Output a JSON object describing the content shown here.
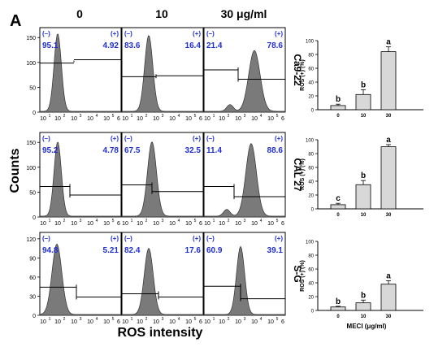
{
  "figure_label": "A",
  "column_headers": [
    "0",
    "10",
    "30 μg/ml"
  ],
  "y_label": "Counts",
  "x_label": "ROS intensity",
  "colors": {
    "fill": "#7a7a7a",
    "quadrant": "#1f2fd6",
    "bar": "#d8d8d8",
    "axis": "#000000"
  },
  "histogram_x_ticks": [
    "10",
    "1",
    "10",
    "2",
    "10",
    "3",
    "10",
    "4",
    "10",
    "5",
    "6"
  ],
  "rows": [
    {
      "name": "Ca9-22",
      "y_ticks": [
        "0",
        "50",
        "100",
        "150"
      ],
      "panels": [
        {
          "neg": "95.1",
          "pos": "4.92"
        },
        {
          "neg": "83.6",
          "pos": "16.4"
        },
        {
          "neg": "21.4",
          "pos": "78.6"
        }
      ]
    },
    {
      "name": "CAL 27",
      "y_ticks": [
        "0",
        "50",
        "100",
        "150"
      ],
      "panels": [
        {
          "neg": "95.2",
          "pos": "4.78"
        },
        {
          "neg": "67.5",
          "pos": "32.5"
        },
        {
          "neg": "11.4",
          "pos": "88.6"
        }
      ]
    },
    {
      "name": "S-G",
      "y_ticks": [
        "0",
        "30",
        "60",
        "90",
        "120"
      ],
      "panels": [
        {
          "neg": "94.8",
          "pos": "5.21"
        },
        {
          "neg": "82.4",
          "pos": "17.6"
        },
        {
          "neg": "60.9",
          "pos": "39.1"
        }
      ]
    }
  ],
  "quadrant_labels": {
    "neg": "(–)",
    "pos": "(+)"
  },
  "chart_data": [
    {
      "type": "bar",
      "row": "Ca9-22",
      "categories": [
        "0",
        "10",
        "30"
      ],
      "values": [
        6,
        22,
        84
      ],
      "errors": [
        2,
        7,
        7
      ],
      "significance": [
        "b",
        "b",
        "a"
      ],
      "ylabel": "ROS (+) (%)",
      "xlabel": "",
      "ylim": [
        0,
        100
      ],
      "yticks": [
        "0",
        "20",
        "40",
        "60",
        "80",
        "100"
      ]
    },
    {
      "type": "bar",
      "row": "CAL 27",
      "categories": [
        "0",
        "10",
        "30"
      ],
      "values": [
        6,
        35,
        90
      ],
      "errors": [
        2,
        6,
        3
      ],
      "significance": [
        "c",
        "b",
        "a"
      ],
      "ylabel": "ROS (+) (%)",
      "xlabel": "",
      "ylim": [
        0,
        100
      ],
      "yticks": [
        "0",
        "20",
        "40",
        "60",
        "80",
        "100"
      ]
    },
    {
      "type": "bar",
      "row": "S-G",
      "categories": [
        "0",
        "10",
        "30"
      ],
      "values": [
        5,
        11,
        38
      ],
      "errors": [
        1,
        4,
        5
      ],
      "significance": [
        "b",
        "b",
        "a"
      ],
      "ylabel": "ROS (+) (%)",
      "xlabel": "MECI (μg/ml)",
      "ylim": [
        0,
        100
      ],
      "yticks": [
        "0",
        "20",
        "40",
        "60",
        "80",
        "100"
      ]
    }
  ]
}
